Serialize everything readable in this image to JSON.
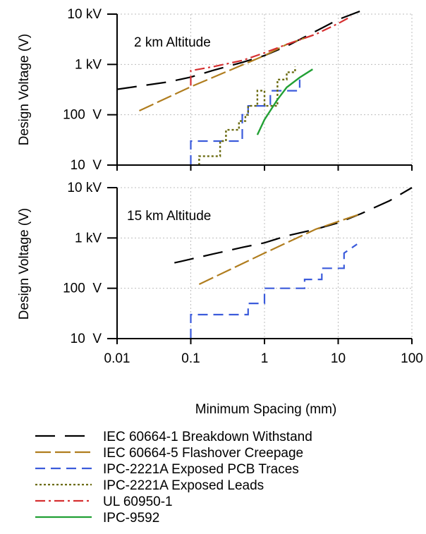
{
  "chart_data": [
    {
      "type": "line",
      "title": "2 km Altitude",
      "xlabel": "Minimum Spacing (mm)",
      "ylabel": "Design Voltage (V)",
      "xscale": "log",
      "yscale": "log",
      "xlim": [
        0.01,
        100
      ],
      "ylim": [
        10,
        10000
      ],
      "xticks": [
        0.01,
        0.1,
        1,
        10,
        100
      ],
      "xtick_labels": [
        "0.01",
        "0.1",
        "1",
        "10",
        "100"
      ],
      "yticks": [
        10,
        100,
        1000,
        10000
      ],
      "ytick_labels": [
        "10  V",
        "100  V",
        "1 kV",
        "10 kV"
      ],
      "grid": true,
      "series": [
        {
          "name": "IEC 60664-1 Breakdown Withstand",
          "color": "#000000",
          "dash": "28,14",
          "width": 2.2,
          "x": [
            0.01,
            0.02,
            0.05,
            0.1,
            0.2,
            0.5,
            1,
            2,
            5,
            10,
            20
          ],
          "y": [
            320,
            370,
            450,
            560,
            760,
            1100,
            1500,
            2300,
            4600,
            7800,
            11500
          ]
        },
        {
          "name": "IEC 60664-5 Flashover Creepage",
          "color": "#b07d1e",
          "dash": "22,6",
          "width": 2.2,
          "x": [
            0.02,
            0.1,
            1,
            2,
            4.5
          ],
          "y": [
            120,
            360,
            1500,
            2500,
            3800
          ]
        },
        {
          "name": "IPC-2221A Exposed PCB Traces",
          "color": "#3b5bdb",
          "dash": "14,8",
          "width": 2.2,
          "x": [
            0.1,
            0.1,
            0.5,
            0.5,
            0.6,
            0.6,
            1.2,
            1.2,
            3,
            3
          ],
          "y": [
            10,
            30,
            30,
            100,
            100,
            150,
            150,
            300,
            300,
            500
          ]
        },
        {
          "name": "IPC-2221A Exposed Leads",
          "color": "#6b6b10",
          "dash": "3,3",
          "width": 2.4,
          "x": [
            0.13,
            0.13,
            0.25,
            0.25,
            0.3,
            0.3,
            0.45,
            0.45,
            0.55,
            0.55,
            0.6,
            0.6,
            0.8,
            0.8,
            1,
            1,
            1.5,
            1.5,
            2,
            2,
            2.6,
            2.6
          ],
          "y": [
            10,
            15,
            15,
            30,
            30,
            50,
            50,
            75,
            75,
            100,
            100,
            150,
            150,
            300,
            300,
            150,
            150,
            500,
            500,
            700,
            700,
            900
          ]
        },
        {
          "name": "UL 60950-1",
          "color": "#d63031",
          "dash": "14,5,3,5",
          "width": 2.2,
          "x": [
            0.1,
            0.1,
            0.2,
            0.5,
            1,
            2,
            5,
            10,
            15
          ],
          "y": [
            380,
            750,
            900,
            1200,
            1700,
            2500,
            4000,
            6500,
            9000
          ]
        },
        {
          "name": "IPC-9592",
          "color": "#22a034",
          "dash": "",
          "width": 2.4,
          "x": [
            0.8,
            1,
            1.5,
            2,
            3,
            4.5
          ],
          "y": [
            40,
            80,
            200,
            350,
            550,
            800
          ]
        }
      ]
    },
    {
      "type": "line",
      "title": "15 km Altitude",
      "xlabel": "Minimum Spacing (mm)",
      "ylabel": "Design Voltage (V)",
      "xscale": "log",
      "yscale": "log",
      "xlim": [
        0.01,
        100
      ],
      "ylim": [
        10,
        10000
      ],
      "xticks": [
        0.01,
        0.1,
        1,
        10,
        100
      ],
      "xtick_labels": [
        "0.01",
        "0.1",
        "1",
        "10",
        "100"
      ],
      "yticks": [
        10,
        100,
        1000,
        10000
      ],
      "ytick_labels": [
        "10  V",
        "100  V",
        "1 kV",
        "10 kV"
      ],
      "grid": true,
      "series": [
        {
          "name": "IEC 60664-1 Breakdown Withstand",
          "color": "#000000",
          "dash": "28,14",
          "width": 2.2,
          "x": [
            0.06,
            0.1,
            0.2,
            0.5,
            1,
            2,
            5,
            10,
            20,
            50,
            100
          ],
          "y": [
            320,
            380,
            480,
            650,
            800,
            1100,
            1500,
            2000,
            3000,
            5500,
            10000
          ]
        },
        {
          "name": "IEC 60664-5 Flashover Creepage",
          "color": "#b07d1e",
          "dash": "22,6",
          "width": 2.2,
          "x": [
            0.13,
            1,
            5,
            20
          ],
          "y": [
            120,
            500,
            1500,
            3000
          ]
        },
        {
          "name": "IPC-2221A Exposed PCB Traces",
          "color": "#3b5bdb",
          "dash": "14,8",
          "width": 2.2,
          "x": [
            0.1,
            0.1,
            0.6,
            0.6,
            1,
            1,
            1.5,
            1.5,
            3.5,
            3.5,
            6,
            6,
            12,
            12,
            18
          ],
          "y": [
            10,
            30,
            30,
            50,
            50,
            100,
            100,
            100,
            100,
            150,
            150,
            250,
            250,
            500,
            750
          ]
        }
      ]
    }
  ],
  "legend": [
    {
      "label": "IEC 60664-1 Breakdown Withstand",
      "color": "#000000",
      "dash": "28,14"
    },
    {
      "label": "IEC 60664-5 Flashover Creepage",
      "color": "#b07d1e",
      "dash": "22,6"
    },
    {
      "label": "IPC-2221A Exposed PCB Traces",
      "color": "#3b5bdb",
      "dash": "14,8"
    },
    {
      "label": "IPC-2221A Exposed Leads",
      "color": "#6b6b10",
      "dash": "3,3"
    },
    {
      "label": "UL 60950-1",
      "color": "#d63031",
      "dash": "14,5,3,5"
    },
    {
      "label": "IPC-9592",
      "color": "#22a034",
      "dash": ""
    }
  ]
}
